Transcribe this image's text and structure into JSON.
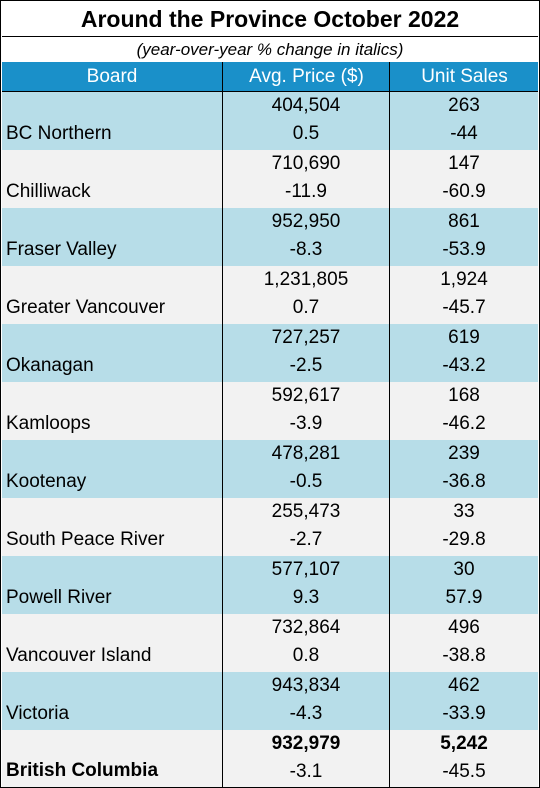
{
  "title": "Around the Province October 2022",
  "subtitle": "(year-over-year % change in italics)",
  "columns": [
    "Board",
    "Avg. Price ($)",
    "Unit Sales"
  ],
  "colors": {
    "header_bg": "#1a90c9",
    "row_blue": "#b7dde8",
    "row_gray": "#f2f2f2"
  },
  "rows": [
    {
      "board": "BC Northern",
      "price": "404,504",
      "price_change": "0.5",
      "sales": "263",
      "sales_change": "-44"
    },
    {
      "board": "Chilliwack",
      "price": "710,690",
      "price_change": "-11.9",
      "sales": "147",
      "sales_change": "-60.9"
    },
    {
      "board": "Fraser Valley",
      "price": "952,950",
      "price_change": "-8.3",
      "sales": "861",
      "sales_change": "-53.9"
    },
    {
      "board": "Greater Vancouver",
      "price": "1,231,805",
      "price_change": "0.7",
      "sales": "1,924",
      "sales_change": "-45.7"
    },
    {
      "board": "Okanagan",
      "price": "727,257",
      "price_change": "-2.5",
      "sales": "619",
      "sales_change": "-43.2"
    },
    {
      "board": "Kamloops",
      "price": "592,617",
      "price_change": "-3.9",
      "sales": "168",
      "sales_change": "-46.2"
    },
    {
      "board": "Kootenay",
      "price": "478,281",
      "price_change": "-0.5",
      "sales": "239",
      "sales_change": "-36.8"
    },
    {
      "board": "South Peace River",
      "price": "255,473",
      "price_change": "-2.7",
      "sales": "33",
      "sales_change": "-29.8"
    },
    {
      "board": "Powell River",
      "price": "577,107",
      "price_change": "9.3",
      "sales": "30",
      "sales_change": "57.9"
    },
    {
      "board": "Vancouver Island",
      "price": "732,864",
      "price_change": "0.8",
      "sales": "496",
      "sales_change": "-38.8"
    },
    {
      "board": "Victoria",
      "price": "943,834",
      "price_change": "-4.3",
      "sales": "462",
      "sales_change": "-33.9"
    }
  ],
  "total": {
    "board": "British Columbia",
    "price": "932,979",
    "price_change": "-3.1",
    "sales": "5,242",
    "sales_change": "-45.5"
  }
}
